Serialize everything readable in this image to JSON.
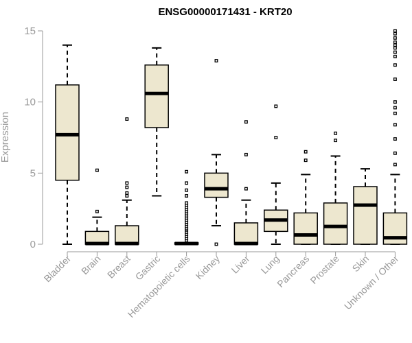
{
  "chart_data": {
    "type": "box",
    "title": "ENSG00000171431 - KRT20",
    "ylabel": "Expression",
    "xlabel": "",
    "ylim": [
      0,
      15
    ],
    "yticks": [
      0,
      5,
      10,
      15
    ],
    "colors": {
      "box_fill": "#EDE7CF",
      "stroke": "#000000",
      "axis": "#999999"
    },
    "categories": [
      "Bladder",
      "Brain",
      "Breast",
      "Gastric",
      "Hematopoietic cells",
      "Kidney",
      "Liver",
      "Lung",
      "Pancreas",
      "Prostate",
      "Skin",
      "Unknown / Other"
    ],
    "boxes": [
      {
        "q1": 4.5,
        "median": 7.7,
        "q3": 11.2,
        "wlow": 0,
        "whigh": 14.0,
        "outliers": []
      },
      {
        "q1": 0,
        "median": 0.05,
        "q3": 0.9,
        "wlow": 0,
        "whigh": 1.9,
        "outliers": [
          2.3,
          5.2
        ]
      },
      {
        "q1": 0,
        "median": 0.05,
        "q3": 1.3,
        "wlow": 0,
        "whigh": 3.1,
        "outliers": [
          3.4,
          3.6,
          4.0,
          4.3,
          8.8
        ]
      },
      {
        "q1": 8.2,
        "median": 10.6,
        "q3": 12.6,
        "wlow": 3.4,
        "whigh": 13.8,
        "outliers": []
      },
      {
        "q1": 0,
        "median": 0.05,
        "q3": 0.1,
        "wlow": 0,
        "whigh": 0.1,
        "outliers": [
          0.25,
          0.4,
          0.55,
          0.7,
          0.85,
          1.0,
          1.1,
          1.25,
          1.4,
          1.55,
          1.7,
          1.85,
          2.0,
          2.15,
          2.3,
          2.45,
          2.6,
          2.75,
          2.9,
          3.4,
          3.8,
          4.3,
          5.1
        ]
      },
      {
        "q1": 3.3,
        "median": 3.9,
        "q3": 5.0,
        "wlow": 1.3,
        "whigh": 6.3,
        "outliers": [
          0,
          12.9
        ]
      },
      {
        "q1": 0,
        "median": 0.05,
        "q3": 1.5,
        "wlow": 0,
        "whigh": 3.1,
        "outliers": [
          3.9,
          6.3,
          8.6
        ]
      },
      {
        "q1": 0.9,
        "median": 1.7,
        "q3": 2.4,
        "wlow": 0,
        "whigh": 4.3,
        "outliers": [
          7.5,
          9.7
        ]
      },
      {
        "q1": 0,
        "median": 0.65,
        "q3": 2.2,
        "wlow": 0,
        "whigh": 4.9,
        "outliers": [
          5.9,
          6.5
        ]
      },
      {
        "q1": 0,
        "median": 1.25,
        "q3": 2.9,
        "wlow": 0,
        "whigh": 6.2,
        "outliers": [
          7.3,
          7.8
        ]
      },
      {
        "q1": 0,
        "median": 2.75,
        "q3": 4.05,
        "wlow": 0,
        "whigh": 5.3,
        "outliers": []
      },
      {
        "q1": 0,
        "median": 0.45,
        "q3": 2.2,
        "wlow": 0,
        "whigh": 4.9,
        "outliers": [
          5.6,
          6.4,
          7.4,
          8.4,
          9.2,
          9.6,
          10.0,
          11.6,
          12.6,
          13.2,
          13.5,
          13.8,
          14.0,
          14.2,
          14.5,
          14.8,
          15.0
        ]
      }
    ]
  }
}
